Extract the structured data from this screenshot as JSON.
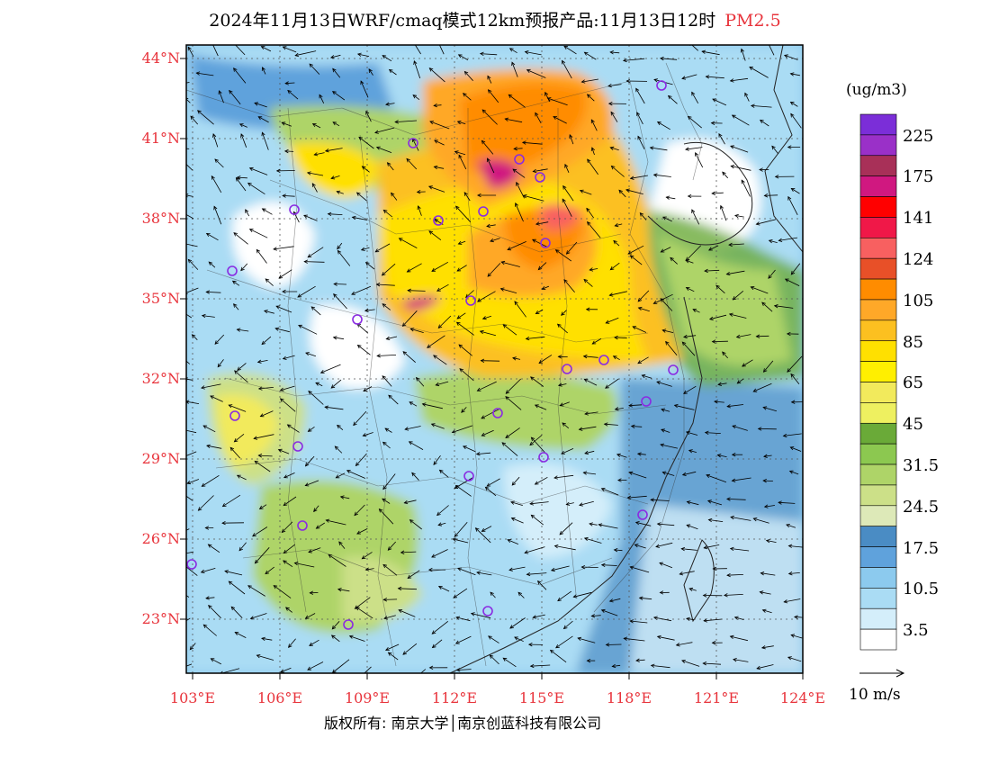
{
  "title": {
    "text": "2024年11月13日WRF/cmaq模式12km预报产品:11月13日12时",
    "variable": "PM2.5"
  },
  "map": {
    "lat_labels": [
      "44°N",
      "41°N",
      "38°N",
      "35°N",
      "32°N",
      "29°N",
      "26°N",
      "23°N"
    ],
    "lon_labels": [
      "103°E",
      "106°E",
      "109°E",
      "112°E",
      "115°E",
      "118°E",
      "121°E",
      "124°E"
    ]
  },
  "colorbar": {
    "unit": "(ug/m3)",
    "levels": [
      "225",
      "175",
      "141",
      "124",
      "105",
      "85",
      "65",
      "45",
      "31.5",
      "24.5",
      "17.5",
      "10.5",
      "3.5"
    ],
    "colors": [
      "#7b2ed8",
      "#9a30c8",
      "#a83058",
      "#d01880",
      "#ff0000",
      "#f01848",
      "#f86060",
      "#e85028",
      "#ff8c00",
      "#ffa828",
      "#fcc020",
      "#ffe000",
      "#ffef00",
      "#f2ea5c",
      "#eef060",
      "#6aaa38",
      "#8cc850",
      "#aed468",
      "#cce088",
      "#dde9b8",
      "#4a8cc4",
      "#5fa2dc",
      "#8ccaee",
      "#aadcf4",
      "#d4eefa",
      "#ffffff"
    ]
  },
  "wind_legend": {
    "label": "10 m/s"
  },
  "footer": {
    "text": "版权所有: 南京大学│南京创蓝科技有限公司"
  }
}
